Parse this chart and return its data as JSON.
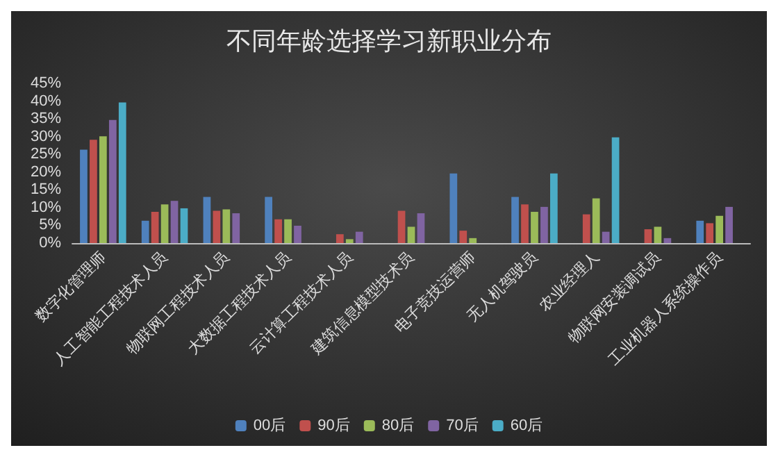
{
  "chart_data": {
    "type": "bar",
    "title": "不同年龄选择学习新职业分布",
    "categories": [
      "数字化管理师",
      "人工智能工程技术人员",
      "物联网工程技术人员",
      "大数据工程技术人员",
      "云计算工程技术人员",
      "建筑信息模型技术员",
      "电子竞技运营师",
      "无人机驾驶员",
      "农业经理人",
      "物联网安装调试员",
      "工业机器人系统操作员"
    ],
    "series": [
      {
        "name": "00后",
        "color": "#4f81bd",
        "values": [
          26.3,
          6.3,
          13,
          13,
          null,
          null,
          19.6,
          13,
          null,
          null,
          6.3
        ]
      },
      {
        "name": "90后",
        "color": "#c0504d",
        "values": [
          29.1,
          8.8,
          9.1,
          6.7,
          2.5,
          9.1,
          3.5,
          10.9,
          8.1,
          3.9,
          5.6
        ]
      },
      {
        "name": "80后",
        "color": "#9bbb59",
        "values": [
          30.1,
          10.9,
          9.5,
          6.7,
          1.1,
          4.6,
          1.4,
          8.8,
          12.6,
          4.6,
          7.7
        ]
      },
      {
        "name": "70后",
        "color": "#8064a2",
        "values": [
          34.7,
          11.9,
          8.4,
          4.9,
          3.2,
          8.4,
          null,
          10.2,
          3.2,
          1.4,
          10.2
        ]
      },
      {
        "name": "60后",
        "color": "#4bacc6",
        "values": [
          39.6,
          9.8,
          null,
          null,
          null,
          null,
          null,
          19.6,
          29.8,
          null,
          null
        ]
      }
    ],
    "ylim": [
      0,
      45
    ],
    "yticks": [
      {
        "value": 0,
        "label": "0%"
      },
      {
        "value": 5,
        "label": "5%"
      },
      {
        "value": 10,
        "label": "10%"
      },
      {
        "value": 15,
        "label": "15%"
      },
      {
        "value": 20,
        "label": "20%"
      },
      {
        "value": 25,
        "label": "25%"
      },
      {
        "value": 30,
        "label": "30%"
      },
      {
        "value": 35,
        "label": "35%"
      },
      {
        "value": 40,
        "label": "40%"
      },
      {
        "value": 45,
        "label": "45%"
      }
    ],
    "grid": false,
    "legend": "bottom"
  }
}
